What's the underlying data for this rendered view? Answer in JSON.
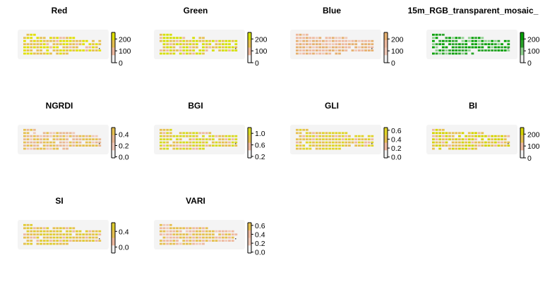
{
  "chart_data": {
    "type": "heatmap",
    "panels": [
      {
        "title": "Red",
        "ticks": [
          "200",
          "100",
          "0"
        ],
        "tick_values": [
          200,
          100,
          0
        ],
        "range": [
          0,
          255
        ],
        "ramp": [
          "#f2f2f2",
          "#eeb99f",
          "#e6c050",
          "#e1e000"
        ]
      },
      {
        "title": "Green",
        "ticks": [
          "200",
          "100",
          "0"
        ],
        "tick_values": [
          200,
          100,
          0
        ],
        "range": [
          0,
          255
        ],
        "ramp": [
          "#f2f2f2",
          "#eeb99f",
          "#e6c050",
          "#d5e000"
        ]
      },
      {
        "title": "Blue",
        "ticks": [
          "200",
          "100",
          "0"
        ],
        "tick_values": [
          200,
          100,
          0
        ],
        "range": [
          0,
          255
        ],
        "ramp": [
          "#f2f2f2",
          "#f0c9b8",
          "#eeb99f",
          "#e6b070"
        ]
      },
      {
        "title": "15m_RGB_transparent_mosaic_",
        "ticks": [
          "200",
          "100",
          "0"
        ],
        "tick_values": [
          200,
          100,
          0
        ],
        "range": [
          0,
          255
        ],
        "ramp": [
          "#f2f2f2",
          "#8fd18f",
          "#2aa52a",
          "#00a000"
        ]
      },
      {
        "title": "NGRDI",
        "ticks": [
          "0.4",
          "0.2",
          "0.0"
        ],
        "tick_values": [
          0.4,
          0.2,
          0.0
        ],
        "range": [
          -0.02,
          0.52
        ],
        "ramp": [
          "#f2f2f2",
          "#f0c9b8",
          "#e9b893",
          "#e6c050"
        ]
      },
      {
        "title": "BGI",
        "ticks": [
          "1.0",
          "0.6",
          "0.2"
        ],
        "tick_values": [
          1.0,
          0.6,
          0.2
        ],
        "range": [
          0.15,
          1.2
        ],
        "ramp": [
          "#f2f2f2",
          "#eeb99f",
          "#e6c050",
          "#d8da20"
        ]
      },
      {
        "title": "GLI",
        "ticks": [
          "0.6",
          "0.4",
          "0.2",
          "0.0"
        ],
        "tick_values": [
          0.6,
          0.4,
          0.2,
          0.0
        ],
        "range": [
          -0.02,
          0.66
        ],
        "ramp": [
          "#f2f2f2",
          "#eeb99f",
          "#e6c050",
          "#e0d428"
        ]
      },
      {
        "title": "BI",
        "ticks": [
          "200",
          "100",
          "0"
        ],
        "tick_values": [
          200,
          100,
          0
        ],
        "range": [
          0,
          255
        ],
        "ramp": [
          "#f2f2f2",
          "#eeb99f",
          "#e6c050",
          "#d5d400"
        ]
      },
      {
        "title": "SI",
        "ticks": [
          "0.4",
          "0.0"
        ],
        "tick_values": [
          0.4,
          0.0
        ],
        "range": [
          -0.15,
          0.62
        ],
        "ramp": [
          "#f2f2f2",
          "#eeb99f",
          "#e6c050",
          "#e0cc30"
        ]
      },
      {
        "title": "VARI",
        "ticks": [
          "0.6",
          "0.4",
          "0.2",
          "0.0"
        ],
        "tick_values": [
          0.6,
          0.4,
          0.2,
          0.0
        ],
        "range": [
          -0.02,
          0.66
        ],
        "ramp": [
          "#f2f2f2",
          "#f0c9b8",
          "#eeb99f",
          "#e6c050"
        ]
      }
    ],
    "layout": {
      "columns": 4,
      "rows": 3
    }
  }
}
